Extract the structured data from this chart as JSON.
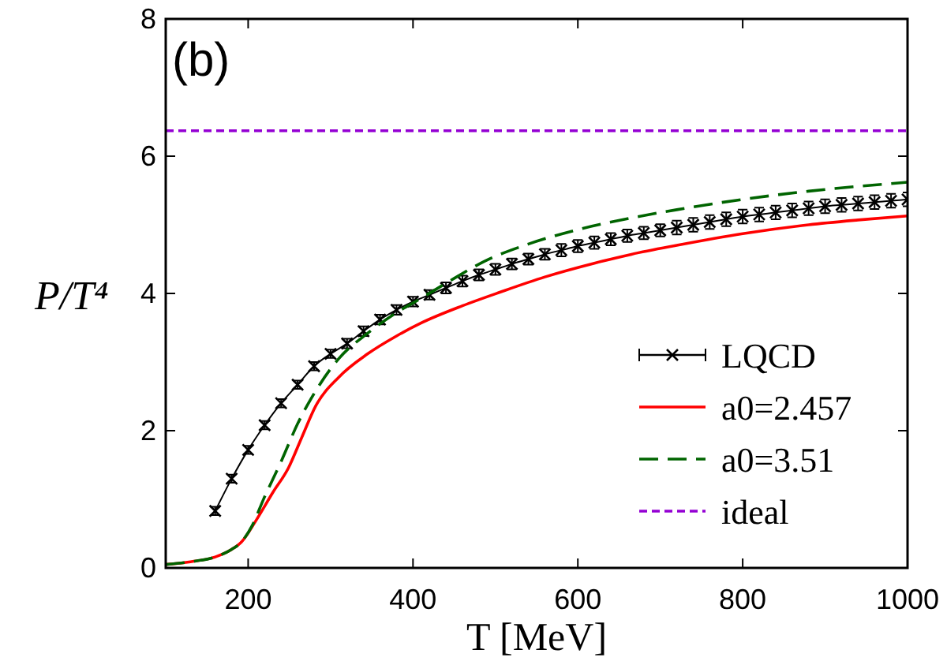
{
  "chart_data": {
    "type": "line",
    "title": "(b)",
    "xlabel": "T [MeV]",
    "ylabel": "P/T⁴",
    "xlim": [
      100,
      1000
    ],
    "ylim": [
      0,
      8
    ],
    "xticks": [
      200,
      400,
      600,
      800,
      1000
    ],
    "yticks": [
      0,
      2,
      4,
      6,
      8
    ],
    "grid": false,
    "legend": "bottom right",
    "series": [
      {
        "name": "LQCD",
        "type": "line",
        "color": "#000000",
        "marker": "cross",
        "line_style": "solid",
        "x": [
          160,
          180,
          200,
          220,
          240,
          260,
          280,
          300,
          320,
          340,
          360,
          380,
          400,
          420,
          440,
          460,
          480,
          500,
          520,
          540,
          560,
          580,
          600,
          620,
          640,
          660,
          680,
          700,
          720,
          740,
          760,
          780,
          800,
          820,
          840,
          860,
          880,
          900,
          920,
          940,
          960,
          980,
          1000
        ],
        "values": [
          0.83,
          1.3,
          1.72,
          2.08,
          2.4,
          2.67,
          2.94,
          3.12,
          3.27,
          3.45,
          3.62,
          3.76,
          3.88,
          3.98,
          4.08,
          4.18,
          4.27,
          4.35,
          4.43,
          4.5,
          4.57,
          4.63,
          4.69,
          4.74,
          4.79,
          4.84,
          4.88,
          4.92,
          4.96,
          5.0,
          5.04,
          5.08,
          5.12,
          5.15,
          5.18,
          5.21,
          5.24,
          5.27,
          5.29,
          5.31,
          5.33,
          5.35,
          5.37
        ],
        "errors": [
          0.06,
          0.06,
          0.06,
          0.06,
          0.06,
          0.06,
          0.06,
          0.06,
          0.07,
          0.07,
          0.07,
          0.07,
          0.07,
          0.07,
          0.08,
          0.08,
          0.08,
          0.08,
          0.08,
          0.08,
          0.08,
          0.09,
          0.09,
          0.09,
          0.09,
          0.09,
          0.09,
          0.09,
          0.1,
          0.1,
          0.1,
          0.1,
          0.1,
          0.1,
          0.1,
          0.1,
          0.1,
          0.1,
          0.1,
          0.1,
          0.1,
          0.1,
          0.1
        ]
      },
      {
        "name": "a0=2.457",
        "type": "line",
        "color": "#ff0000",
        "marker": "none",
        "line_style": "solid",
        "x": [
          100,
          130,
          160,
          180,
          192,
          210,
          230,
          249,
          265,
          282,
          310,
          345,
          380,
          410,
          460,
          506,
          560,
          620,
          665,
          720,
          800,
          880,
          940,
          1000
        ],
        "values": [
          0.05,
          0.09,
          0.16,
          0.27,
          0.38,
          0.7,
          1.1,
          1.46,
          1.9,
          2.36,
          2.78,
          3.12,
          3.38,
          3.57,
          3.82,
          4.02,
          4.24,
          4.44,
          4.57,
          4.7,
          4.87,
          5.0,
          5.07,
          5.13
        ]
      },
      {
        "name": "a0=3.51",
        "type": "line",
        "color": "#006400",
        "marker": "none",
        "line_style": "dashed",
        "x": [
          100,
          130,
          160,
          180,
          192,
          205,
          219,
          240,
          260,
          282,
          310,
          345,
          380,
          410,
          450,
          487,
          540,
          600,
          665,
          720,
          800,
          880,
          940,
          1000
        ],
        "values": [
          0.05,
          0.09,
          0.16,
          0.27,
          0.38,
          0.62,
          1.01,
          1.55,
          2.1,
          2.58,
          3.05,
          3.42,
          3.72,
          3.93,
          4.22,
          4.47,
          4.72,
          4.93,
          5.1,
          5.22,
          5.37,
          5.49,
          5.56,
          5.62
        ]
      },
      {
        "name": "ideal",
        "type": "line",
        "color": "#9400d3",
        "marker": "none",
        "line_style": "dotted",
        "x": [
          100,
          1000
        ],
        "values": [
          6.37,
          6.37
        ]
      }
    ]
  }
}
